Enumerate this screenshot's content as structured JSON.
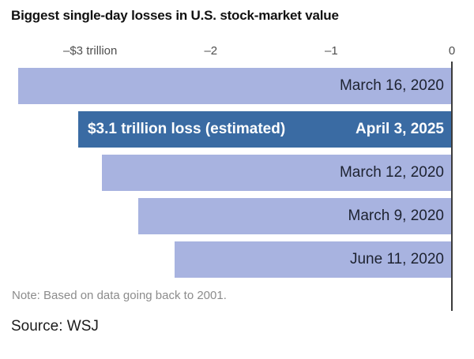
{
  "title": "Biggest single-day losses in U.S. stock-market value",
  "note": "Note: Based on data going back to 2001.",
  "source": "Source: WSJ",
  "colors": {
    "bar": "#a8b3e0",
    "highlight_bar": "#3a6ba3",
    "axis_line": "#3c3c3c",
    "label_text": "#1d2230",
    "highlight_text": "#ffffff"
  },
  "chart_data": {
    "type": "bar",
    "orientation": "horizontal",
    "title": "Biggest single-day losses in U.S. stock-market value",
    "unit": "trillion USD",
    "categories": [
      "March 16, 2020",
      "April 3, 2025",
      "March 12, 2020",
      "March 9, 2020",
      "June 11, 2020"
    ],
    "values": [
      -3.6,
      -3.1,
      -2.9,
      -2.6,
      -2.3
    ],
    "highlight_index": 1,
    "highlight_annotation": "$3.1 trillion loss (estimated)",
    "xlim": [
      -3.65,
      0
    ],
    "ticks": [
      {
        "value": -3,
        "label": "–$3 trillion"
      },
      {
        "value": -2,
        "label": "–2"
      },
      {
        "value": -1,
        "label": "–1"
      },
      {
        "value": 0,
        "label": "0"
      }
    ],
    "grid": false,
    "legend": false,
    "note": "Note: Based on data going back to 2001.",
    "source": "Source: WSJ"
  }
}
